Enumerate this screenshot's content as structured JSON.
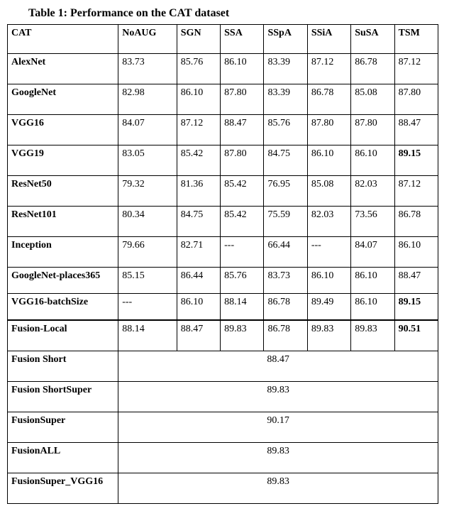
{
  "caption": "Table 1:  Performance on the CAT dataset",
  "headers": [
    "CAT",
    "NoAUG",
    "SGN",
    "SSA",
    "SSpA",
    "SSiA",
    "SuSA",
    "TSM"
  ],
  "rows": [
    {
      "label": "AlexNet",
      "cells": [
        "83.73",
        "85.76",
        "86.10",
        "83.39",
        "87.12",
        "86.78",
        "87.12"
      ],
      "bold": []
    },
    {
      "label": "GoogleNet",
      "cells": [
        "82.98",
        "86.10",
        "87.80",
        "83.39",
        "86.78",
        "85.08",
        "87.80"
      ],
      "bold": []
    },
    {
      "label": "VGG16",
      "cells": [
        "84.07",
        "87.12",
        "88.47",
        "85.76",
        "87.80",
        "87.80",
        "88.47"
      ],
      "bold": []
    },
    {
      "label": "VGG19",
      "cells": [
        "83.05",
        "85.42",
        "87.80",
        "84.75",
        "86.10",
        "86.10",
        "89.15"
      ],
      "bold": [
        6
      ]
    },
    {
      "label": "ResNet50",
      "cells": [
        "79.32",
        "81.36",
        "85.42",
        "76.95",
        "85.08",
        "82.03",
        "87.12"
      ],
      "bold": []
    },
    {
      "label": "ResNet101",
      "cells": [
        "80.34",
        "84.75",
        "85.42",
        "75.59",
        "82.03",
        "73.56",
        "86.78"
      ],
      "bold": []
    },
    {
      "label": "Inception",
      "cells": [
        "79.66",
        "82.71",
        "---",
        "66.44",
        "---",
        "84.07",
        "86.10"
      ],
      "bold": []
    },
    {
      "label": "GoogleNet-places365",
      "cells": [
        "85.15",
        "86.44",
        "85.76",
        "83.73",
        "86.10",
        "86.10",
        "88.47"
      ],
      "bold": [],
      "short": true
    },
    {
      "label": "VGG16-batchSize",
      "cells": [
        "---",
        "86.10",
        "88.14",
        "86.78",
        "89.49",
        "86.10",
        "89.15"
      ],
      "bold": [
        6
      ],
      "short": true
    },
    {
      "label": "Fusion-Local",
      "cells": [
        "88.14",
        "88.47",
        "89.83",
        "86.78",
        "89.83",
        "89.83",
        "90.51"
      ],
      "bold": [
        6
      ],
      "thick": true
    }
  ],
  "spanRows": [
    {
      "label": "Fusion Short",
      "value": "88.47"
    },
    {
      "label": "Fusion ShortSuper",
      "value": "89.83"
    },
    {
      "label": "FusionSuper",
      "value": "90.17"
    },
    {
      "label": "FusionALL",
      "value": "89.83"
    },
    {
      "label": "FusionSuper_VGG16",
      "value": "89.83"
    }
  ]
}
